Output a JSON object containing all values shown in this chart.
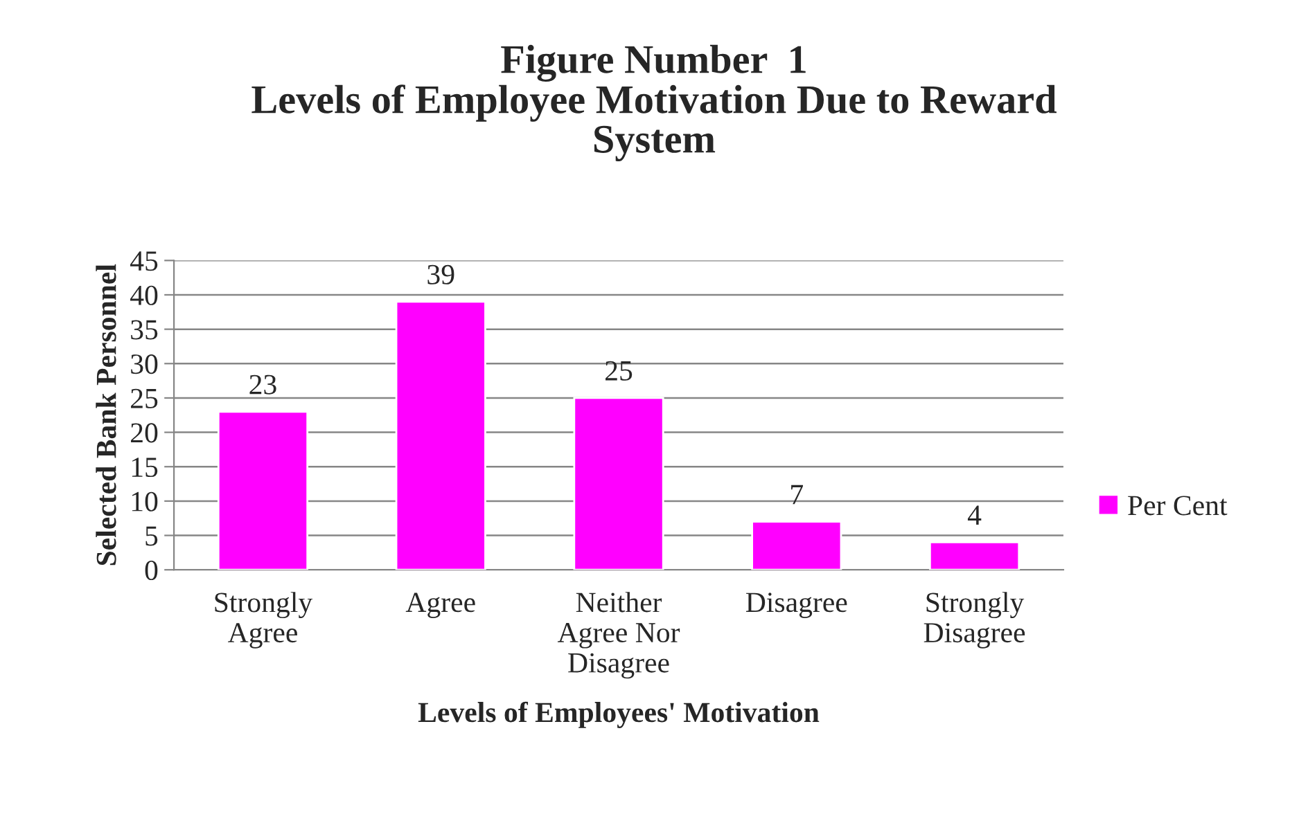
{
  "chart_data": {
    "type": "bar",
    "title": "Figure Number  1\nLevels of Employee Motivation Due to Reward\nSystem",
    "xlabel": "Levels of Employees' Motivation",
    "ylabel": "Selected Bank Personnel",
    "categories": [
      "Strongly\nAgree",
      "Agree",
      "Neither\nAgree Nor\nDisagree",
      "Disagree",
      "Strongly\nDisagree"
    ],
    "series": [
      {
        "name": "Per Cent",
        "color": "#ff00ff",
        "values": [
          23,
          39,
          25,
          7,
          4
        ]
      }
    ],
    "ylim": [
      0,
      45
    ],
    "yticks": [
      0,
      5,
      10,
      15,
      20,
      25,
      30,
      35,
      40,
      45
    ],
    "grid": "y",
    "legend": "right",
    "data_labels": true
  }
}
